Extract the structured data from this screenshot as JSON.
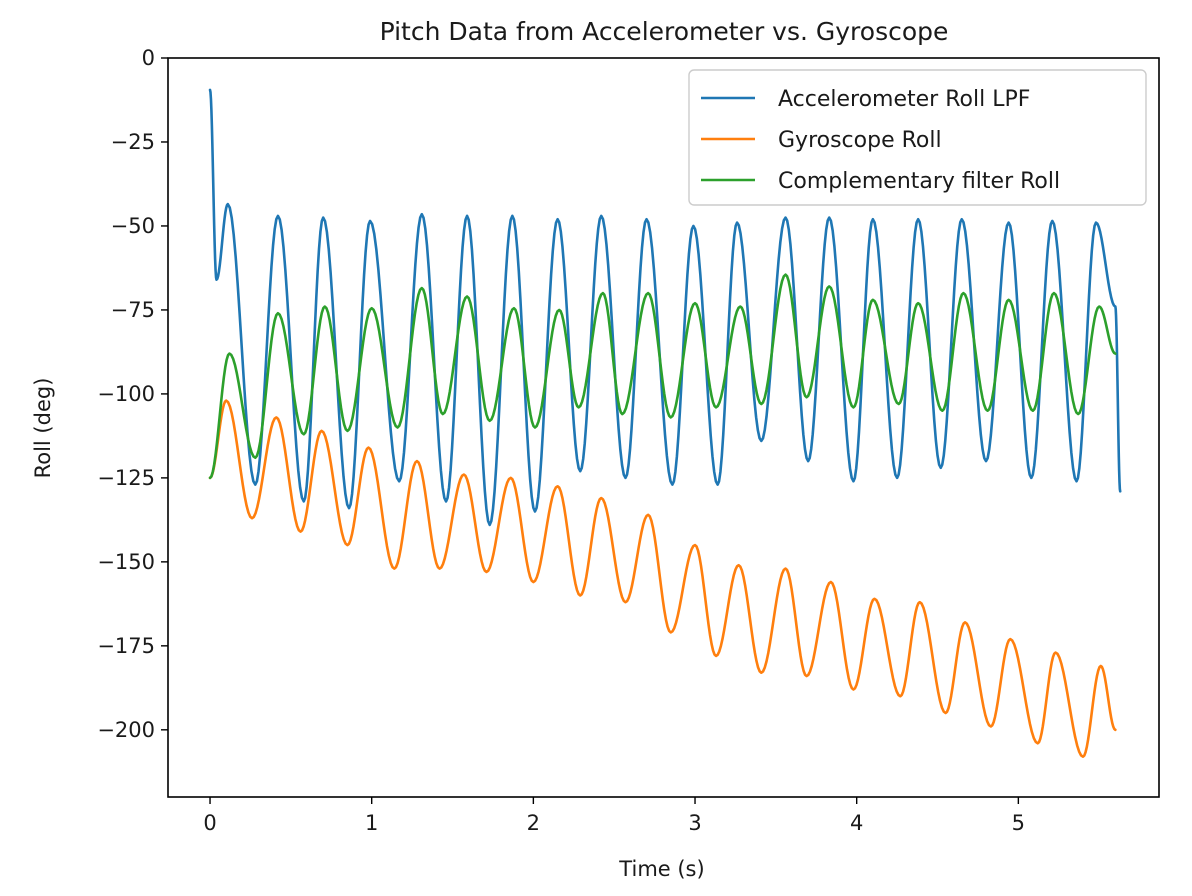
{
  "chart_data": {
    "type": "line",
    "title": "Pitch Data from Accelerometer vs. Gyroscope",
    "xlabel": "Time (s)",
    "ylabel": "Roll (deg)",
    "xlim": [
      -0.26,
      5.87
    ],
    "ylim": [
      -220,
      0
    ],
    "xticks": [
      0,
      1,
      2,
      3,
      4,
      5
    ],
    "yticks": [
      0,
      -25,
      -50,
      -75,
      -100,
      -125,
      -150,
      -175,
      -200
    ],
    "xtick_labels": [
      "0",
      "1",
      "2",
      "3",
      "4",
      "5"
    ],
    "ytick_labels": [
      "0",
      "−25",
      "−50",
      "−75",
      "−100",
      "−125",
      "−150",
      "−175",
      "−200"
    ],
    "grid": false,
    "legend_position": "top-right",
    "series": [
      {
        "name": "Accelerometer Roll LPF",
        "color": "#1f77b4",
        "peaks": [
          [
            0.0,
            -9.5
          ],
          [
            0.11,
            -43.5
          ],
          [
            0.42,
            -47
          ],
          [
            0.7,
            -47.5
          ],
          [
            0.99,
            -48.5
          ],
          [
            1.31,
            -46.5
          ],
          [
            1.59,
            -47
          ],
          [
            1.87,
            -47
          ],
          [
            2.15,
            -48
          ],
          [
            2.42,
            -47
          ],
          [
            2.7,
            -48
          ],
          [
            2.99,
            -50
          ],
          [
            3.26,
            -49
          ],
          [
            3.56,
            -47.5
          ],
          [
            3.83,
            -47.5
          ],
          [
            4.1,
            -48
          ],
          [
            4.38,
            -48
          ],
          [
            4.65,
            -48
          ],
          [
            4.94,
            -49
          ],
          [
            5.21,
            -48.5
          ],
          [
            5.48,
            -49
          ]
        ],
        "troughs": [
          [
            0.04,
            -66
          ],
          [
            0.28,
            -127
          ],
          [
            0.58,
            -132
          ],
          [
            0.86,
            -134
          ],
          [
            1.17,
            -126
          ],
          [
            1.46,
            -132
          ],
          [
            1.73,
            -139
          ],
          [
            2.01,
            -135
          ],
          [
            2.29,
            -123
          ],
          [
            2.57,
            -125
          ],
          [
            2.86,
            -127
          ],
          [
            3.14,
            -127
          ],
          [
            3.41,
            -114
          ],
          [
            3.7,
            -120
          ],
          [
            3.98,
            -126
          ],
          [
            4.25,
            -125
          ],
          [
            4.52,
            -122
          ],
          [
            4.8,
            -120
          ],
          [
            5.08,
            -125
          ],
          [
            5.36,
            -126
          ],
          [
            5.63,
            -129
          ]
        ],
        "end": [
          5.6,
          -74
        ]
      },
      {
        "name": "Gyroscope Roll",
        "color": "#ff7f0e",
        "start": [
          0.0,
          -125
        ],
        "peaks": [
          [
            0.1,
            -102
          ],
          [
            0.41,
            -107
          ],
          [
            0.69,
            -111
          ],
          [
            0.98,
            -116
          ],
          [
            1.28,
            -120
          ],
          [
            1.57,
            -124
          ],
          [
            1.86,
            -125
          ],
          [
            2.15,
            -127.5
          ],
          [
            2.42,
            -131
          ],
          [
            2.71,
            -136
          ],
          [
            3.0,
            -145
          ],
          [
            3.27,
            -151
          ],
          [
            3.56,
            -152
          ],
          [
            3.84,
            -156
          ],
          [
            4.11,
            -161
          ],
          [
            4.39,
            -162
          ],
          [
            4.67,
            -168
          ],
          [
            4.95,
            -173
          ],
          [
            5.23,
            -177
          ],
          [
            5.51,
            -181
          ]
        ],
        "troughs": [
          [
            0.26,
            -137
          ],
          [
            0.56,
            -141
          ],
          [
            0.85,
            -145
          ],
          [
            1.14,
            -152
          ],
          [
            1.42,
            -152
          ],
          [
            1.71,
            -153
          ],
          [
            2.0,
            -156
          ],
          [
            2.29,
            -160
          ],
          [
            2.57,
            -162
          ],
          [
            2.85,
            -171
          ],
          [
            3.13,
            -178
          ],
          [
            3.41,
            -183
          ],
          [
            3.69,
            -184
          ],
          [
            3.98,
            -188
          ],
          [
            4.27,
            -190
          ],
          [
            4.55,
            -195
          ],
          [
            4.83,
            -199
          ],
          [
            5.12,
            -204
          ],
          [
            5.4,
            -208
          ]
        ],
        "end": [
          5.6,
          -200
        ]
      },
      {
        "name": "Complementary filter Roll",
        "color": "#2ca02c",
        "start": [
          0.0,
          -125
        ],
        "peaks": [
          [
            0.12,
            -88
          ],
          [
            0.42,
            -76
          ],
          [
            0.71,
            -74
          ],
          [
            1.0,
            -74.5
          ],
          [
            1.31,
            -68.5
          ],
          [
            1.59,
            -71
          ],
          [
            1.88,
            -74.5
          ],
          [
            2.16,
            -75
          ],
          [
            2.43,
            -70
          ],
          [
            2.71,
            -70
          ],
          [
            3.0,
            -73
          ],
          [
            3.28,
            -74
          ],
          [
            3.56,
            -64.5
          ],
          [
            3.83,
            -68
          ],
          [
            4.1,
            -72
          ],
          [
            4.38,
            -73
          ],
          [
            4.66,
            -70
          ],
          [
            4.94,
            -72
          ],
          [
            5.22,
            -70
          ],
          [
            5.5,
            -74
          ]
        ],
        "troughs": [
          [
            0.28,
            -119
          ],
          [
            0.58,
            -112
          ],
          [
            0.85,
            -111
          ],
          [
            1.16,
            -110
          ],
          [
            1.44,
            -106
          ],
          [
            1.73,
            -108
          ],
          [
            2.01,
            -110
          ],
          [
            2.28,
            -104
          ],
          [
            2.55,
            -106
          ],
          [
            2.85,
            -107
          ],
          [
            3.13,
            -104
          ],
          [
            3.41,
            -103
          ],
          [
            3.69,
            -101
          ],
          [
            3.98,
            -104
          ],
          [
            4.26,
            -103
          ],
          [
            4.53,
            -105
          ],
          [
            4.81,
            -105
          ],
          [
            5.09,
            -105
          ],
          [
            5.37,
            -106
          ]
        ],
        "end": [
          5.6,
          -88
        ]
      }
    ]
  }
}
